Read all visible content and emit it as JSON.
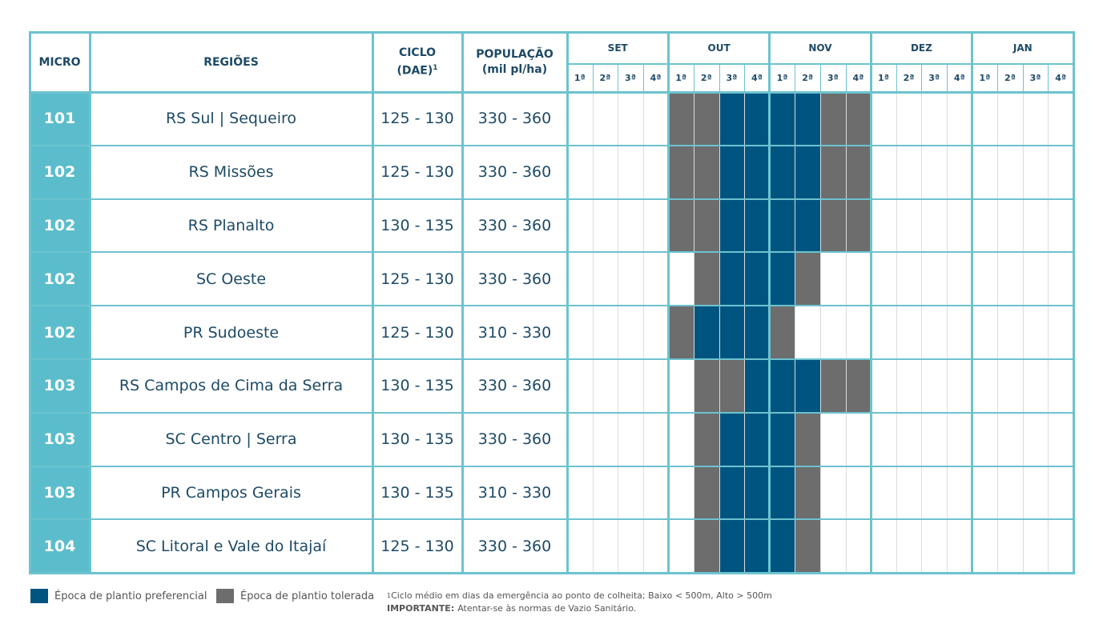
{
  "table": {
    "headers": {
      "micro": "MICRO",
      "regions": "REGIÕES",
      "cycle": "CICLO",
      "cycle_unit": "(DAE)",
      "cycle_note": "1",
      "population": "POPULAÇÃO",
      "population_unit": "(mil pl/ha)"
    },
    "months": [
      "SET",
      "OUT",
      "NOV",
      "DEZ",
      "JAN"
    ],
    "weeks": [
      "1ª",
      "2ª",
      "3ª",
      "4ª"
    ],
    "rows": [
      {
        "micro": "101",
        "region": "RS Sul | Sequeiro",
        "cycle": "125 - 130",
        "population": "330 - 360",
        "cells": [
          null,
          null,
          null,
          null,
          1,
          1,
          0,
          0,
          0,
          0,
          1,
          1,
          null,
          null,
          null,
          null,
          null,
          null,
          null,
          null
        ]
      },
      {
        "micro": "102",
        "region": "RS Missões",
        "cycle": "125 - 130",
        "population": "330 - 360",
        "cells": [
          null,
          null,
          null,
          null,
          1,
          1,
          0,
          0,
          0,
          0,
          1,
          1,
          null,
          null,
          null,
          null,
          null,
          null,
          null,
          null
        ]
      },
      {
        "micro": "102",
        "region": "RS Planalto",
        "cycle": "130 - 135",
        "population": "330 - 360",
        "cells": [
          null,
          null,
          null,
          null,
          1,
          1,
          0,
          0,
          0,
          0,
          1,
          1,
          null,
          null,
          null,
          null,
          null,
          null,
          null,
          null
        ]
      },
      {
        "micro": "102",
        "region": "SC Oeste",
        "cycle": "125 - 130",
        "population": "330 - 360",
        "cells": [
          null,
          null,
          null,
          null,
          null,
          1,
          0,
          0,
          0,
          1,
          null,
          null,
          null,
          null,
          null,
          null,
          null,
          null,
          null,
          null
        ]
      },
      {
        "micro": "102",
        "region": "PR Sudoeste",
        "cycle": "125 - 130",
        "population": "310 - 330",
        "cells": [
          null,
          null,
          null,
          null,
          1,
          0,
          0,
          0,
          1,
          null,
          null,
          null,
          null,
          null,
          null,
          null,
          null,
          null,
          null,
          null
        ]
      },
      {
        "micro": "103",
        "region": "RS Campos de Cima da Serra",
        "cycle": "130 - 135",
        "population": "330 - 360",
        "cells": [
          null,
          null,
          null,
          null,
          null,
          1,
          1,
          0,
          0,
          0,
          1,
          1,
          null,
          null,
          null,
          null,
          null,
          null,
          null,
          null
        ]
      },
      {
        "micro": "103",
        "region": "SC Centro | Serra",
        "cycle": "130 - 135",
        "population": "330 - 360",
        "cells": [
          null,
          null,
          null,
          null,
          null,
          1,
          0,
          0,
          0,
          1,
          null,
          null,
          null,
          null,
          null,
          null,
          null,
          null,
          null,
          null
        ]
      },
      {
        "micro": "103",
        "region": "PR Campos Gerais",
        "cycle": "130 - 135",
        "population": "310 - 330",
        "cells": [
          null,
          null,
          null,
          null,
          null,
          1,
          0,
          0,
          0,
          1,
          null,
          null,
          null,
          null,
          null,
          null,
          null,
          null,
          null,
          null
        ]
      },
      {
        "micro": "104",
        "region": "SC Litoral e Vale do Itajaí",
        "cycle": "125 - 130",
        "population": "330 - 360",
        "cells": [
          null,
          null,
          null,
          null,
          null,
          1,
          0,
          0,
          0,
          1,
          null,
          null,
          null,
          null,
          null,
          null,
          null,
          null,
          null,
          null
        ]
      }
    ]
  },
  "legend": [
    {
      "label": "Época de plantio preferencial",
      "color": "#005580"
    },
    {
      "label": "Época de plantio tolerada",
      "color": "#6d6d6d"
    }
  ],
  "footnote": {
    "mark": "1",
    "text": "Ciclo médio em dias da emergência ao ponto de colheita; Baixo < 500m, Alto > 500m",
    "important_label": "IMPORTANTE:",
    "important_text": "Atentar-se às normas de Vazio Sanitário."
  }
}
